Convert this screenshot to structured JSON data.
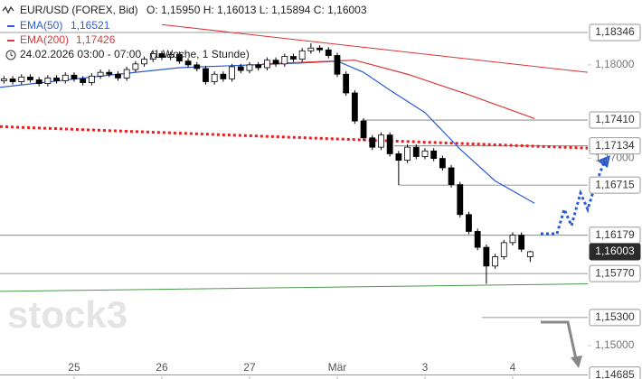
{
  "header": {
    "symbol": "EUR/USD (FOREX, Bid)",
    "ohlc": "O: 1,15950  H: 1,16013  L: 1,15894  C: 1,16003",
    "period": "24.02.2026 03:00 - 07:00",
    "range": "(1 Woche, 1 Stunde)",
    "watermark": "stock3"
  },
  "chart_data": {
    "type": "candlestick",
    "up_color": "#ffffff",
    "down_color": "#000000",
    "xlim": [
      -0.845,
      5.856
    ],
    "xticks": [
      {
        "value": 0,
        "label": "25"
      },
      {
        "value": 1,
        "label": "26"
      },
      {
        "value": 2,
        "label": "27"
      },
      {
        "value": 3,
        "label": "Mär"
      },
      {
        "value": 4,
        "label": "3"
      },
      {
        "value": 5,
        "label": "4"
      }
    ],
    "ylim": [
      1.14643,
      1.18693
    ],
    "yticks": [
      {
        "value": 1.18,
        "label": "1,18000"
      },
      {
        "value": 1.17,
        "label": "1,17000"
      },
      {
        "value": 1.15,
        "label": "1,15000"
      }
    ],
    "x": [
      -0.8,
      -0.7,
      -0.6,
      -0.5,
      -0.4,
      -0.3,
      -0.2,
      -0.1,
      0,
      0.1,
      0.2,
      0.3,
      0.4,
      0.5,
      0.6,
      0.7,
      0.8,
      0.9,
      1,
      1.1,
      1.2,
      1.3,
      1.4,
      1.5,
      1.6,
      1.7,
      1.8,
      1.9,
      2,
      2.1,
      2.2,
      2.3,
      2.4,
      2.5,
      2.6,
      2.7,
      2.8,
      2.9,
      3,
      3.1,
      3.2,
      3.3,
      3.4,
      3.5,
      3.6,
      3.7,
      3.8,
      3.9,
      4,
      4.1,
      4.2,
      4.3,
      4.4,
      4.5,
      4.6,
      4.7,
      4.8,
      4.9,
      5,
      5.1,
      5.2
    ],
    "open": [
      1.1783,
      1.1785,
      1.1782,
      1.1787,
      1.1784,
      1.178,
      1.1786,
      1.1783,
      1.1789,
      1.1785,
      1.1781,
      1.1788,
      1.1792,
      1.179,
      1.1786,
      1.1795,
      1.1801,
      1.1806,
      1.1812,
      1.1808,
      1.1811,
      1.1804,
      1.18,
      1.1796,
      1.1782,
      1.179,
      1.1785,
      1.1798,
      1.1794,
      1.18,
      1.1797,
      1.1805,
      1.1801,
      1.1809,
      1.1806,
      1.1815,
      1.1818,
      1.1816,
      1.181,
      1.179,
      1.177,
      1.174,
      1.1722,
      1.1712,
      1.1725,
      1.1705,
      1.1698,
      1.1712,
      1.1702,
      1.1708,
      1.17,
      1.169,
      1.1672,
      1.164,
      1.1622,
      1.1605,
      1.1585,
      1.1595,
      1.161,
      1.1618,
      1.1595
    ],
    "high": [
      1.1788,
      1.1788,
      1.179,
      1.179,
      1.1787,
      1.1789,
      1.1789,
      1.1792,
      1.1792,
      1.1788,
      1.1791,
      1.1795,
      1.1795,
      1.1793,
      1.1798,
      1.1804,
      1.1809,
      1.1815,
      1.1815,
      1.1814,
      1.1814,
      1.1807,
      1.1803,
      1.1799,
      1.1793,
      1.1793,
      1.1801,
      1.1801,
      1.1803,
      1.1803,
      1.1808,
      1.1808,
      1.1812,
      1.1812,
      1.1818,
      1.1823,
      1.1821,
      1.1819,
      1.1813,
      1.1793,
      1.1773,
      1.1743,
      1.1725,
      1.1728,
      1.1728,
      1.1708,
      1.1715,
      1.1715,
      1.1711,
      1.1711,
      1.1703,
      1.1693,
      1.1675,
      1.1643,
      1.1625,
      1.1608,
      1.1598,
      1.1613,
      1.1621,
      1.1621,
      1.16013
    ],
    "low": [
      1.178,
      1.1779,
      1.1779,
      1.1781,
      1.1777,
      1.1777,
      1.178,
      1.178,
      1.1782,
      1.1778,
      1.1778,
      1.1785,
      1.1787,
      1.1783,
      1.1783,
      1.1792,
      1.1798,
      1.1803,
      1.1805,
      1.1805,
      1.1801,
      1.1797,
      1.1793,
      1.1779,
      1.1779,
      1.1782,
      1.1782,
      1.1791,
      1.1791,
      1.1794,
      1.1794,
      1.1798,
      1.1798,
      1.1803,
      1.1803,
      1.1812,
      1.1813,
      1.1807,
      1.1787,
      1.1767,
      1.1737,
      1.1719,
      1.1709,
      1.1709,
      1.1702,
      1.16715,
      1.1695,
      1.1699,
      1.1699,
      1.1697,
      1.1687,
      1.1669,
      1.1637,
      1.1619,
      1.1602,
      1.1566,
      1.1582,
      1.1592,
      1.1607,
      1.16,
      1.15894
    ],
    "close": [
      1.1785,
      1.1782,
      1.1787,
      1.1784,
      1.178,
      1.1786,
      1.1783,
      1.1789,
      1.1785,
      1.1781,
      1.1788,
      1.1792,
      1.179,
      1.1786,
      1.1795,
      1.1801,
      1.1806,
      1.1812,
      1.1808,
      1.1811,
      1.1804,
      1.18,
      1.1796,
      1.1782,
      1.179,
      1.1785,
      1.1798,
      1.1794,
      1.18,
      1.1797,
      1.1805,
      1.1801,
      1.1809,
      1.1806,
      1.1815,
      1.1818,
      1.1816,
      1.181,
      1.179,
      1.177,
      1.174,
      1.1722,
      1.1712,
      1.1725,
      1.1705,
      1.1698,
      1.1712,
      1.1702,
      1.1708,
      1.17,
      1.169,
      1.1672,
      1.164,
      1.1622,
      1.1605,
      1.1585,
      1.1595,
      1.161,
      1.1618,
      1.1603,
      1.16003
    ],
    "series": [
      {
        "name": "EMA(50)",
        "value_label": "1,16521",
        "color": "#2a5bd7",
        "x": [
          -0.845,
          0.5,
          1.2,
          2.6,
          3,
          3.3,
          3.6,
          4,
          4.4,
          4.8,
          5.25
        ],
        "values": [
          1.1776,
          1.179,
          1.1797,
          1.1802,
          1.1804,
          1.1792,
          1.1773,
          1.1749,
          1.171,
          1.1676,
          1.16521
        ]
      },
      {
        "name": "EMA(200)",
        "value_label": "1,17426",
        "color": "#d83a3a",
        "x": [
          2.15,
          3.2,
          3.8,
          4.5,
          5.25
        ],
        "values": [
          1.1801,
          1.1805,
          1.179,
          1.1768,
          1.17426
        ]
      }
    ],
    "trend_lines": [
      {
        "color": "#dd2222",
        "style": "dotted",
        "x": [
          -0.845,
          5.856
        ],
        "values": [
          1.1734,
          1.1711
        ]
      },
      {
        "color": "#4a9a4a",
        "style": "solid",
        "x": [
          -0.845,
          5.856
        ],
        "values": [
          1.1558,
          1.1566
        ]
      },
      {
        "color": "#dd3333",
        "style": "solid",
        "x": [
          1.0,
          5.856
        ],
        "values": [
          1.1843,
          1.1792
        ]
      }
    ],
    "levels": [
      {
        "value": 1.18346,
        "label": "1,18346",
        "x_start": -0.845
      },
      {
        "value": 1.1741,
        "label": "1,17410",
        "x_start": 3.28
      },
      {
        "value": 1.17134,
        "label": "1,17134",
        "x_start": 3.65
      },
      {
        "value": 1.16715,
        "label": "1,16715",
        "x_start": 3.7
      },
      {
        "value": 1.16179,
        "label": "1,16179",
        "x_start": -0.845
      },
      {
        "value": 1.16003,
        "label": "1,16003",
        "current": true
      },
      {
        "value": 1.1577,
        "label": "1,15770",
        "x_start": -0.845
      },
      {
        "value": 1.153,
        "label": "1,15300",
        "x_start": 4.65
      },
      {
        "value": 1.14685,
        "label": "1,14685",
        "x_start": -0.845
      }
    ]
  }
}
